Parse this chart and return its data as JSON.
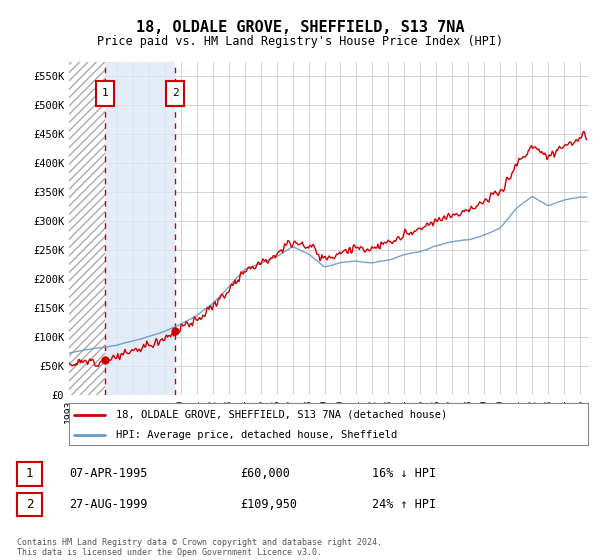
{
  "title": "18, OLDALE GROVE, SHEFFIELD, S13 7NA",
  "subtitle": "Price paid vs. HM Land Registry's House Price Index (HPI)",
  "footer": "Contains HM Land Registry data © Crown copyright and database right 2024.\nThis data is licensed under the Open Government Licence v3.0.",
  "legend_line1": "18, OLDALE GROVE, SHEFFIELD, S13 7NA (detached house)",
  "legend_line2": "HPI: Average price, detached house, Sheffield",
  "transaction1_label": "1",
  "transaction1_date": "07-APR-1995",
  "transaction1_price": "£60,000",
  "transaction1_hpi": "16% ↓ HPI",
  "transaction1_year": 1995.27,
  "transaction1_value": 60000,
  "transaction2_label": "2",
  "transaction2_date": "27-AUG-1999",
  "transaction2_price": "£109,950",
  "transaction2_hpi": "24% ↑ HPI",
  "transaction2_year": 1999.65,
  "transaction2_value": 109950,
  "ylim": [
    0,
    575000
  ],
  "yticks": [
    0,
    50000,
    100000,
    150000,
    200000,
    250000,
    300000,
    350000,
    400000,
    450000,
    500000,
    550000
  ],
  "xlim_start": 1993.0,
  "xlim_end": 2025.5,
  "line_color_property": "#cc0000",
  "line_color_hpi": "#6699cc",
  "hatch_color": "#cccccc",
  "marker_box_color": "#cc0000",
  "background_color": "#ffffff",
  "grid_color": "#cccccc",
  "hpi_years": [
    1993,
    1994,
    1995,
    1996,
    1997,
    1998,
    1999,
    2000,
    2001,
    2002,
    2003,
    2004,
    2005,
    2006,
    2007,
    2008,
    2009,
    2010,
    2011,
    2012,
    2013,
    2014,
    2015,
    2016,
    2017,
    2018,
    2019,
    2020,
    2021,
    2022,
    2023,
    2024,
    2025
  ],
  "hpi_vals": [
    72000,
    78000,
    82000,
    87000,
    94000,
    102000,
    110000,
    122000,
    136000,
    158000,
    188000,
    218000,
    228000,
    240000,
    258000,
    245000,
    222000,
    230000,
    232000,
    230000,
    234000,
    244000,
    250000,
    260000,
    268000,
    272000,
    280000,
    292000,
    328000,
    348000,
    333000,
    343000,
    348000
  ]
}
